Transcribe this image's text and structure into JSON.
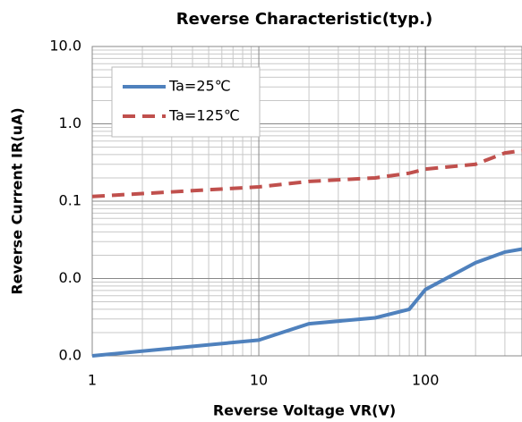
{
  "chart_data": {
    "type": "line",
    "title": "Reverse Characteristic(typ.)",
    "x_label": "Reverse Voltage VR(V)",
    "y_label": "Reverse Current IR(uA)",
    "x": [
      1,
      10,
      20,
      50,
      80,
      100,
      200,
      300,
      380
    ],
    "series": [
      {
        "name": "Ta=25℃",
        "color": "#4f81bd",
        "dash": false,
        "values": [
          0.001,
          0.0016,
          0.0026,
          0.0031,
          0.004,
          0.0072,
          0.016,
          0.022,
          0.024
        ]
      },
      {
        "name": "Ta=125℃",
        "color": "#c0504d",
        "dash": true,
        "values": [
          0.115,
          0.153,
          0.18,
          0.2,
          0.23,
          0.26,
          0.3,
          0.42,
          0.45
        ]
      }
    ],
    "xlim": [
      1,
      380
    ],
    "xticks": [
      1,
      10,
      100
    ],
    "ylim": [
      0.001,
      10
    ],
    "yticks": [
      {
        "value": 10,
        "label": "10.0"
      },
      {
        "value": 1,
        "label": "1.0"
      },
      0.1,
      {
        "value": 0.01,
        "label": "0.0"
      },
      {
        "value": 0.001,
        "label": "0.0"
      }
    ],
    "x_log": true,
    "y_log": true,
    "grid": true,
    "legend": "upper left"
  }
}
